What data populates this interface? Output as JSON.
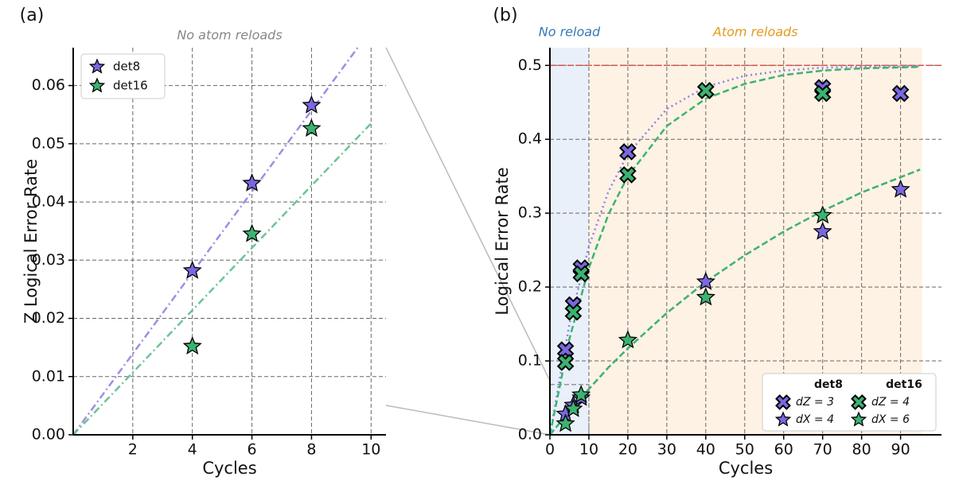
{
  "chart_data": [
    {
      "type": "scatter",
      "panel_label": "(a)",
      "title": "No atom reloads",
      "xlabel": "Cycles",
      "ylabel": "Z Logical Error Rate",
      "xlim": [
        0,
        10.5
      ],
      "ylim": [
        0,
        0.0665
      ],
      "xticks": [
        2,
        4,
        6,
        8,
        10
      ],
      "yticks": [
        {
          "value": 0,
          "label": "0.00"
        },
        0.01,
        0.02,
        0.03,
        0.04,
        0.05,
        0.06
      ],
      "grid": true,
      "legend": "upper left",
      "series": [
        {
          "name": "det8",
          "color": "#7b68e0",
          "marker": "star",
          "x": [
            4,
            6,
            8
          ],
          "values": [
            0.0282,
            0.0432,
            0.0566
          ],
          "fit": {
            "color": "#9d8fe3",
            "style": "dashdot",
            "x": [
              0,
              9.55
            ],
            "values": [
              0,
              0.0665
            ]
          }
        },
        {
          "name": "det16",
          "color": "#3cb371",
          "marker": "star",
          "x": [
            4,
            6,
            8
          ],
          "values": [
            0.0152,
            0.0345,
            0.0526
          ],
          "fit": {
            "color": "#6cc495",
            "style": "dashdot",
            "x": [
              0,
              10
            ],
            "values": [
              0,
              0.0535
            ]
          }
        }
      ]
    },
    {
      "type": "scatter",
      "panel_label": "(b)",
      "xlabel": "Cycles",
      "ylabel": "Logical Error Rate",
      "xlim": [
        0,
        100.5
      ],
      "ylim": [
        0,
        0.524
      ],
      "xticks": [
        0,
        10,
        20,
        30,
        40,
        50,
        60,
        70,
        80,
        90
      ],
      "yticks": [
        {
          "value": 0,
          "label": "0.0"
        },
        0.1,
        0.2,
        0.3,
        0.4,
        0.5
      ],
      "grid": true,
      "legend": "lower right",
      "regions": [
        {
          "label": "No reload",
          "color": "#e9f0f9",
          "label_color": "#3a78b8",
          "x": [
            0,
            10
          ]
        },
        {
          "label": "Atom reloads",
          "color": "#fdf2e4",
          "label_color": "#e39a1e",
          "x": [
            10,
            95.5
          ]
        }
      ],
      "hline": {
        "value": 0.5,
        "color": "#d9534f"
      },
      "inset_box": {
        "x": [
          0,
          10
        ],
        "y": [
          0,
          0.068
        ]
      },
      "groups": [
        {
          "name": "det8",
          "series": [
            {
              "name": "dZ = 3",
              "color": "#7b68e0",
              "marker": "cross",
              "x": [
                4,
                6,
                8,
                20,
                40,
                70,
                90
              ],
              "values": [
                0.115,
                0.176,
                0.226,
                0.383,
                0.466,
                0.47,
                0.462
              ],
              "fit": {
                "color": "#8f7fe8",
                "style": "dotted",
                "x": [
                  0,
                  5,
                  10,
                  15,
                  20,
                  30,
                  40,
                  50,
                  60,
                  70,
                  80,
                  95
                ],
                "values": [
                  0,
                  0.15,
                  0.255,
                  0.329,
                  0.38,
                  0.441,
                  0.471,
                  0.486,
                  0.493,
                  0.497,
                  0.498,
                  0.499
                ]
              }
            },
            {
              "name": "dX = 4",
              "color": "#7b68e0",
              "marker": "star",
              "x": [
                4,
                6,
                8,
                40,
                70,
                90
              ],
              "values": [
                0.028,
                0.04,
                0.05,
                0.207,
                0.275,
                0.332
              ],
              "fit": {
                "color": "#8f7fe8",
                "style": "dotted",
                "x": [
                  0,
                  5,
                  10,
                  15,
                  20,
                  30,
                  40,
                  50,
                  60,
                  70,
                  80,
                  95
                ],
                "values": [
                  0,
                  0.032,
                  0.062,
                  0.091,
                  0.117,
                  0.165,
                  0.207,
                  0.243,
                  0.275,
                  0.303,
                  0.328,
                  0.359
                ]
              }
            }
          ]
        },
        {
          "name": "det16",
          "series": [
            {
              "name": "dZ = 4",
              "color": "#3cb371",
              "marker": "cross",
              "x": [
                4,
                6,
                8,
                20,
                40,
                70
              ],
              "values": [
                0.098,
                0.166,
                0.218,
                0.352,
                0.466,
                0.462
              ],
              "fit": {
                "color": "#3cb371",
                "style": "dashed",
                "x": [
                  0,
                  5,
                  10,
                  15,
                  20,
                  30,
                  40,
                  50,
                  60,
                  70,
                  80,
                  95
                ],
                "values": [
                  0,
                  0.13,
                  0.226,
                  0.298,
                  0.35,
                  0.418,
                  0.455,
                  0.475,
                  0.487,
                  0.493,
                  0.496,
                  0.498
                ]
              }
            },
            {
              "name": "dX = 6",
              "color": "#3cb371",
              "marker": "star",
              "x": [
                4,
                6,
                8,
                20,
                40,
                70
              ],
              "values": [
                0.015,
                0.035,
                0.054,
                0.128,
                0.186,
                0.297
              ],
              "fit": {
                "color": "#3cb371",
                "style": "dashed",
                "x": [
                  0,
                  5,
                  10,
                  15,
                  20,
                  30,
                  40,
                  50,
                  60,
                  70,
                  80,
                  95
                ],
                "values": [
                  0,
                  0.032,
                  0.062,
                  0.091,
                  0.117,
                  0.165,
                  0.207,
                  0.243,
                  0.275,
                  0.303,
                  0.328,
                  0.359
                ]
              }
            }
          ]
        }
      ]
    }
  ]
}
